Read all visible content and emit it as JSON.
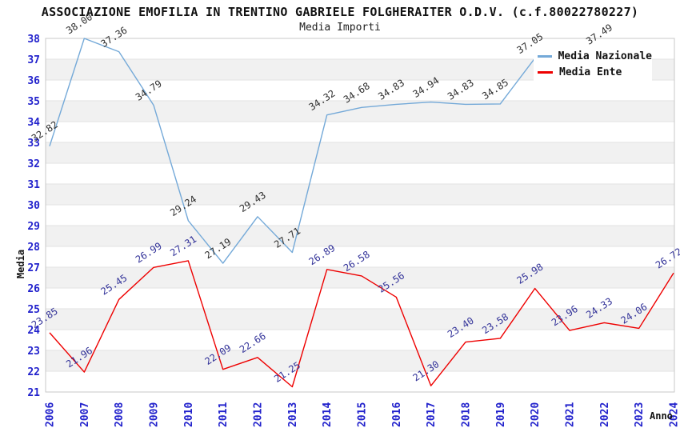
{
  "chart_data": {
    "type": "line",
    "title": "ASSOCIAZIONE EMOFILIA IN TRENTINO GABRIELE FOLGHERAITER O.D.V. (c.f.80022780227)",
    "subtitle": "Media Importi",
    "xlabel": "Anno",
    "ylabel": "Media",
    "ylim": [
      21,
      38
    ],
    "x": [
      2006,
      2007,
      2008,
      2009,
      2010,
      2011,
      2012,
      2013,
      2014,
      2015,
      2016,
      2017,
      2018,
      2019,
      2020,
      2021,
      2022,
      2023,
      2024
    ],
    "series": [
      {
        "name": "Media Nazionale",
        "color": "#74a9d8",
        "label_color": "#303030",
        "values": [
          32.82,
          38.0,
          37.36,
          34.79,
          29.24,
          27.19,
          29.43,
          27.71,
          34.32,
          34.68,
          34.83,
          34.94,
          34.83,
          34.85,
          37.05,
          null,
          37.49,
          null,
          null
        ]
      },
      {
        "name": "Media Ente",
        "color": "#ee0000",
        "label_color": "#333399",
        "values": [
          23.85,
          21.96,
          25.45,
          26.99,
          27.31,
          22.09,
          22.66,
          21.25,
          26.89,
          26.58,
          25.56,
          21.3,
          23.4,
          23.58,
          25.98,
          23.96,
          24.33,
          24.06,
          26.72
        ]
      }
    ],
    "legend_position": "top-right",
    "grid": "horizontal-bands"
  },
  "styles": {
    "tick_color": "#2222cc",
    "band_color": "#f1f1f1",
    "grid_color": "#e2e2e2",
    "plot_border": "#c8c8c8",
    "axis_label_color": "#111111"
  }
}
